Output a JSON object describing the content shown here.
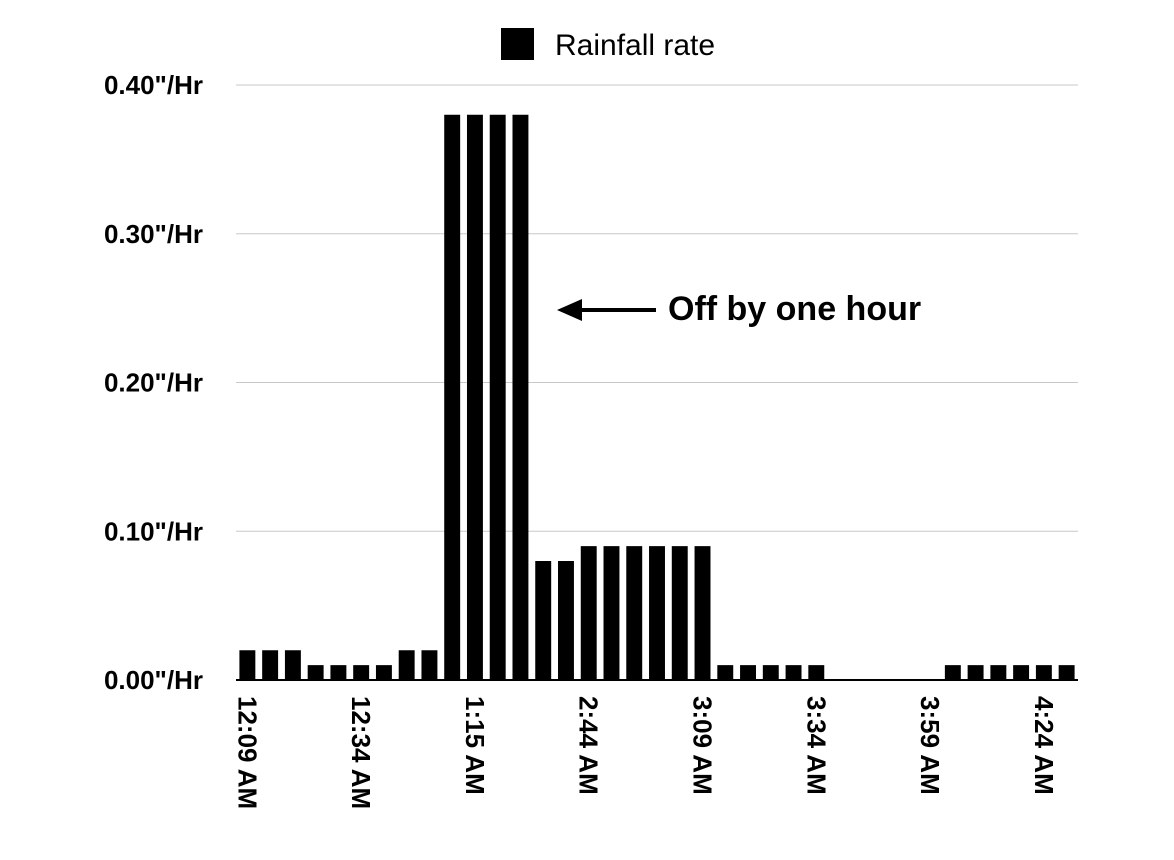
{
  "chart_data": {
    "type": "bar",
    "legend": {
      "label": "Rainfall rate",
      "position": "top-center"
    },
    "ylim": [
      0,
      0.4
    ],
    "y_ticks": [
      {
        "value": 0.0,
        "label": "0.00\"/Hr"
      },
      {
        "value": 0.1,
        "label": "0.10\"/Hr"
      },
      {
        "value": 0.2,
        "label": "0.20\"/Hr"
      },
      {
        "value": 0.3,
        "label": "0.30\"/Hr"
      },
      {
        "value": 0.4,
        "label": "0.40\"/Hr"
      }
    ],
    "grid": true,
    "x_tick_labels": [
      {
        "index": 0,
        "label": "12:09 AM"
      },
      {
        "index": 5,
        "label": "12:34 AM"
      },
      {
        "index": 10,
        "label": "1:15 AM"
      },
      {
        "index": 15,
        "label": "2:44 AM"
      },
      {
        "index": 20,
        "label": "3:09 AM"
      },
      {
        "index": 25,
        "label": "3:34 AM"
      },
      {
        "index": 30,
        "label": "3:59 AM"
      },
      {
        "index": 35,
        "label": "4:24 AM"
      }
    ],
    "values": [
      0.02,
      0.02,
      0.02,
      0.01,
      0.01,
      0.01,
      0.01,
      0.02,
      0.02,
      0.38,
      0.38,
      0.38,
      0.38,
      0.08,
      0.08,
      0.09,
      0.09,
      0.09,
      0.09,
      0.09,
      0.09,
      0.01,
      0.01,
      0.01,
      0.01,
      0.01,
      0,
      0,
      0,
      0,
      0,
      0.01,
      0.01,
      0.01,
      0.01,
      0.01,
      0.01
    ],
    "color": "#000000",
    "annotation": {
      "text": "Off by one hour",
      "arrow": "left"
    }
  }
}
